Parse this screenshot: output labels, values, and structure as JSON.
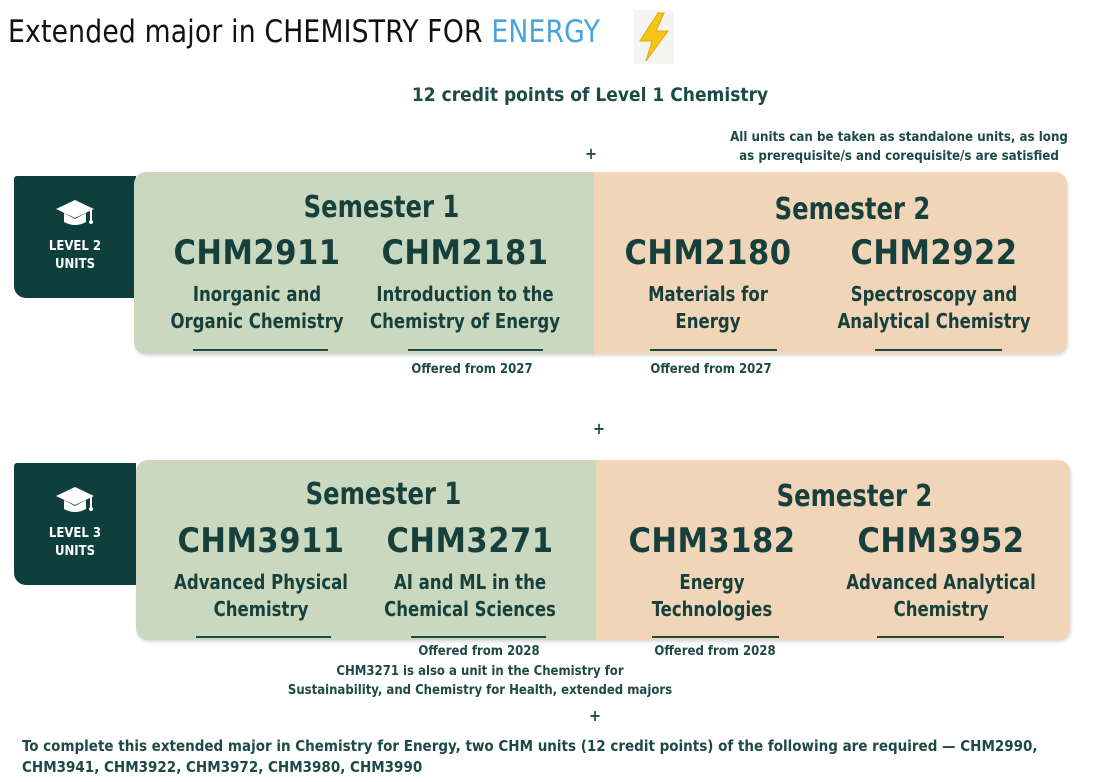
{
  "header": {
    "title_prefix": "Extended major in CHEMISTRY FOR ",
    "title_accent": "ENERGY",
    "credits_line": "12 credit points of Level 1 Chemistry",
    "plus": "+",
    "standalone_note_line1": "All  units can be taken as standalone units, as long",
    "standalone_note_line2": "as prerequisite/s and corequisite/s are satisfied"
  },
  "level2": {
    "tab_line1": "LEVEL 2",
    "tab_line2": "UNITS",
    "semester1": "Semester 1",
    "semester2": "Semester 2",
    "units": [
      {
        "code": "CHM2911",
        "name_line1": "Inorganic and",
        "name_line2": "Organic Chemistry",
        "offered": ""
      },
      {
        "code": "CHM2181",
        "name_line1": "Introduction to the",
        "name_line2": "Chemistry of Energy",
        "offered": "Offered from 2027"
      },
      {
        "code": "CHM2180",
        "name_line1": "Materials for",
        "name_line2": "Energy",
        "offered": "Offered from 2027"
      },
      {
        "code": "CHM2922",
        "name_line1": "Spectroscopy and",
        "name_line2": "Analytical Chemistry",
        "offered": ""
      }
    ]
  },
  "level3": {
    "tab_line1": "LEVEL 3",
    "tab_line2": "UNITS",
    "semester1": "Semester 1",
    "semester2": "Semester 2",
    "units": [
      {
        "code": "CHM3911",
        "name_line1": "Advanced Physical",
        "name_line2": "Chemistry",
        "offered": ""
      },
      {
        "code": "CHM3271",
        "name_line1": "AI and ML in the",
        "name_line2": "Chemical Sciences",
        "offered": "Offered from 2028"
      },
      {
        "code": "CHM3182",
        "name_line1": "Energy",
        "name_line2": "Technologies",
        "offered": "Offered from 2028"
      },
      {
        "code": "CHM3952",
        "name_line1": "Advanced Analytical",
        "name_line2": "Chemistry",
        "offered": ""
      }
    ],
    "note_line1": "CHM3271 is also a unit in the Chemistry for",
    "note_line2": "Sustainability, and Chemistry for Health, extended majors"
  },
  "footer": {
    "text": "To complete this extended major in Chemistry for Energy, two CHM units (12 credit points) of the following are required — CHM2990, CHM3941, CHM3922, CHM3972, CHM3980, CHM3990"
  },
  "colors": {
    "sem1_panel": "#cad8bf",
    "sem2_panel": "#f1d5b8",
    "level_tab": "#0e3f3c",
    "accent_blue": "#4aa3d9",
    "bolt_yellow": "#f5c518",
    "text_dark": "#17403d"
  },
  "icons": [
    "graduation-cap-icon",
    "lightning-bolt-icon"
  ]
}
